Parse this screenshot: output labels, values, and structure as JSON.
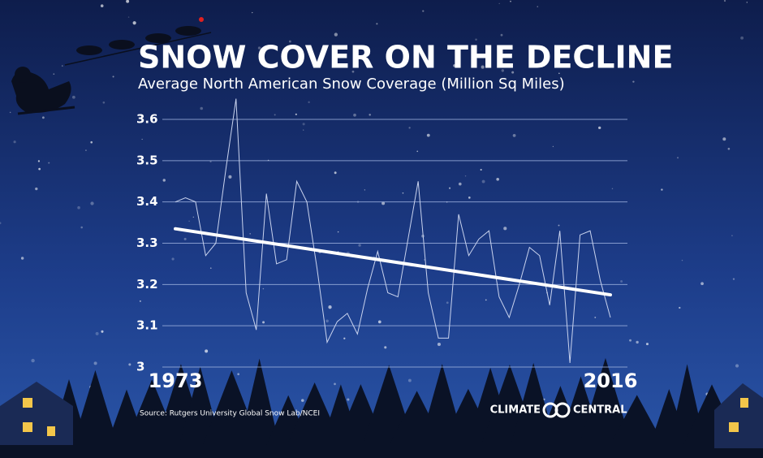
{
  "chart_data": {
    "type": "line",
    "title": "SNOW COVER ON THE DECLINE",
    "subtitle": "Average North American Snow Coverage (Million Sq Miles)",
    "source": "Source: Rutgers University Global Snow Lab/NCEI",
    "logo": {
      "left": "CLIMATE",
      "right": "CENTRAL"
    },
    "x": [
      1973,
      1974,
      1975,
      1976,
      1977,
      1978,
      1979,
      1980,
      1981,
      1982,
      1983,
      1984,
      1985,
      1986,
      1987,
      1988,
      1989,
      1990,
      1991,
      1992,
      1993,
      1994,
      1995,
      1996,
      1997,
      1998,
      1999,
      2000,
      2001,
      2002,
      2003,
      2004,
      2005,
      2006,
      2007,
      2008,
      2009,
      2010,
      2011,
      2012,
      2013,
      2014,
      2015,
      2016
    ],
    "series": [
      {
        "color": "#c9d3ee",
        "values": [
          3.4,
          3.41,
          3.4,
          3.27,
          3.3,
          3.48,
          3.65,
          3.18,
          3.09,
          3.42,
          3.25,
          3.26,
          3.45,
          3.4,
          3.24,
          3.06,
          3.11,
          3.13,
          3.08,
          3.19,
          3.28,
          3.18,
          3.17,
          3.31,
          3.45,
          3.18,
          3.07,
          3.07,
          3.37,
          3.27,
          3.31,
          3.33,
          3.17,
          3.12,
          3.2,
          3.29,
          3.27,
          3.15,
          3.33,
          3.01,
          3.32,
          3.33,
          3.21,
          3.12
        ]
      }
    ],
    "trendline": {
      "color": "#ffffff",
      "x": [
        1973,
        2016
      ],
      "values": [
        3.335,
        3.175
      ]
    },
    "xlim": [
      1973,
      2016
    ],
    "xticks": [
      1973,
      2016
    ],
    "ylim": [
      3,
      3.6
    ],
    "yticks": [
      3,
      3.1,
      3.2,
      3.3,
      3.4,
      3.5,
      3.6
    ],
    "grid": true
  }
}
